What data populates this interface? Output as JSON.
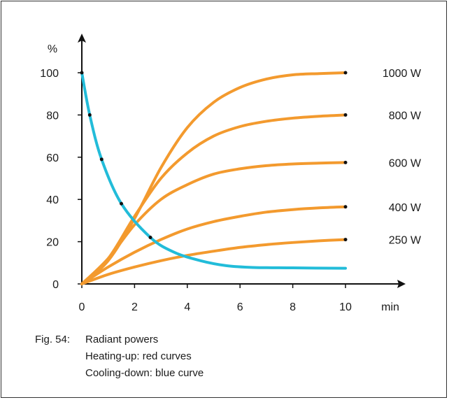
{
  "chart_data": {
    "type": "line",
    "ylabel": "%",
    "xlabel": "min",
    "xlim": [
      0,
      10
    ],
    "ylim": [
      0,
      100
    ],
    "x_ticks": [
      0,
      2,
      4,
      6,
      8,
      10
    ],
    "y_ticks": [
      0,
      20,
      40,
      60,
      80,
      100
    ],
    "grid": false,
    "colors": {
      "heating": "#f39a2e",
      "cooling": "#22bcd9",
      "axis": "#111111",
      "marker": "#111111"
    },
    "series": [
      {
        "name": "1000 W",
        "kind": "heating",
        "points": [
          [
            0,
            0
          ],
          [
            1,
            11
          ],
          [
            2,
            31
          ],
          [
            3,
            55
          ],
          [
            4,
            74
          ],
          [
            5,
            86
          ],
          [
            6,
            93
          ],
          [
            7,
            97
          ],
          [
            8,
            99
          ],
          [
            9,
            99.6
          ],
          [
            10,
            100
          ]
        ]
      },
      {
        "name": "800 W",
        "kind": "heating",
        "points": [
          [
            0,
            0
          ],
          [
            1,
            12
          ],
          [
            2,
            32
          ],
          [
            3,
            50
          ],
          [
            4,
            62
          ],
          [
            5,
            70
          ],
          [
            6,
            74.5
          ],
          [
            7,
            77
          ],
          [
            8,
            78.5
          ],
          [
            9,
            79.4
          ],
          [
            10,
            80
          ]
        ]
      },
      {
        "name": "600 W",
        "kind": "heating",
        "points": [
          [
            0,
            0
          ],
          [
            1,
            12
          ],
          [
            2,
            28
          ],
          [
            3,
            40
          ],
          [
            4,
            47
          ],
          [
            5,
            52
          ],
          [
            6,
            54.5
          ],
          [
            7,
            56
          ],
          [
            8,
            56.8
          ],
          [
            9,
            57.2
          ],
          [
            10,
            57.5
          ]
        ]
      },
      {
        "name": "400 W",
        "kind": "heating",
        "points": [
          [
            0,
            0
          ],
          [
            1,
            8
          ],
          [
            2,
            15
          ],
          [
            3,
            21
          ],
          [
            4,
            26
          ],
          [
            5,
            29.5
          ],
          [
            6,
            32
          ],
          [
            7,
            34
          ],
          [
            8,
            35.2
          ],
          [
            9,
            36
          ],
          [
            10,
            36.5
          ]
        ]
      },
      {
        "name": "250 W",
        "kind": "heating",
        "points": [
          [
            0,
            0
          ],
          [
            1,
            4.5
          ],
          [
            2,
            8
          ],
          [
            3,
            11
          ],
          [
            4,
            13.5
          ],
          [
            5,
            15.5
          ],
          [
            6,
            17.3
          ],
          [
            7,
            18.6
          ],
          [
            8,
            19.6
          ],
          [
            9,
            20.4
          ],
          [
            10,
            21
          ]
        ]
      },
      {
        "kind": "cooling",
        "points": [
          [
            0,
            100
          ],
          [
            0.3,
            80
          ],
          [
            0.75,
            59
          ],
          [
            1.5,
            38
          ],
          [
            2.6,
            22
          ],
          [
            3.5,
            15
          ],
          [
            4.5,
            11
          ],
          [
            5.5,
            8.6
          ],
          [
            6.5,
            7.8
          ],
          [
            8,
            7.6
          ],
          [
            10,
            7.4
          ]
        ]
      }
    ],
    "markers": [
      [
        0,
        100
      ],
      [
        0.3,
        80
      ],
      [
        0.75,
        59
      ],
      [
        1.5,
        38
      ],
      [
        2.6,
        22
      ],
      [
        10,
        100
      ],
      [
        10,
        80
      ],
      [
        10,
        57.5
      ],
      [
        10,
        36.5
      ],
      [
        10,
        21
      ]
    ]
  },
  "caption": {
    "figure": "Fig. 54:",
    "title": "Radiant powers",
    "line2": "Heating-up: red curves",
    "line3": "Cooling-down: blue curve"
  }
}
